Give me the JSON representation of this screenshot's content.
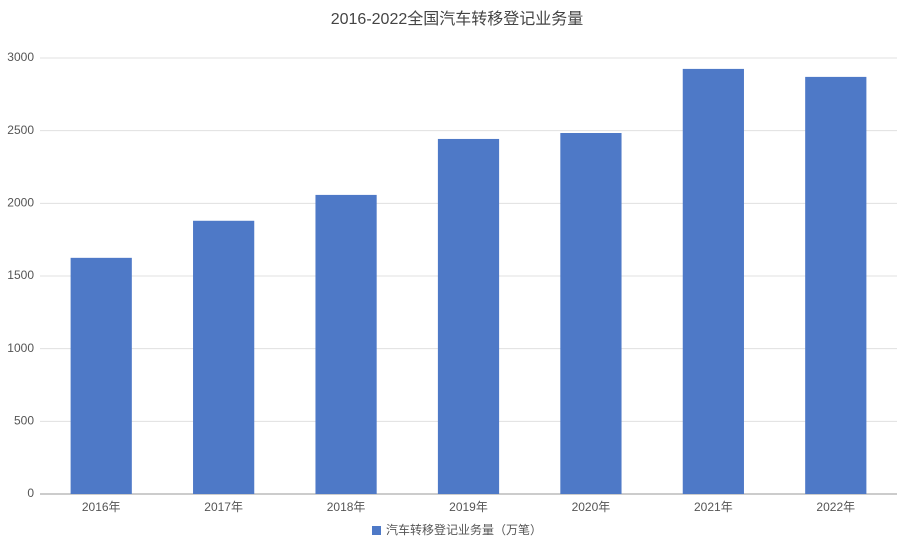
{
  "chart_data": {
    "type": "bar",
    "title": "2016-2022全国汽车转移登记业务量",
    "categories": [
      "2016年",
      "2017年",
      "2018年",
      "2019年",
      "2020年",
      "2021年",
      "2022年"
    ],
    "series": [
      {
        "name": "汽车转移登记业务量（万笔）",
        "color": "#4e79c7",
        "values": [
          1625,
          1880,
          2058,
          2443,
          2484,
          2925,
          2870
        ]
      }
    ],
    "ylim": [
      0,
      3000
    ],
    "yticks": [
      0,
      500,
      1000,
      1500,
      2000,
      2500,
      3000
    ],
    "grid": true,
    "legend": "bottom"
  }
}
